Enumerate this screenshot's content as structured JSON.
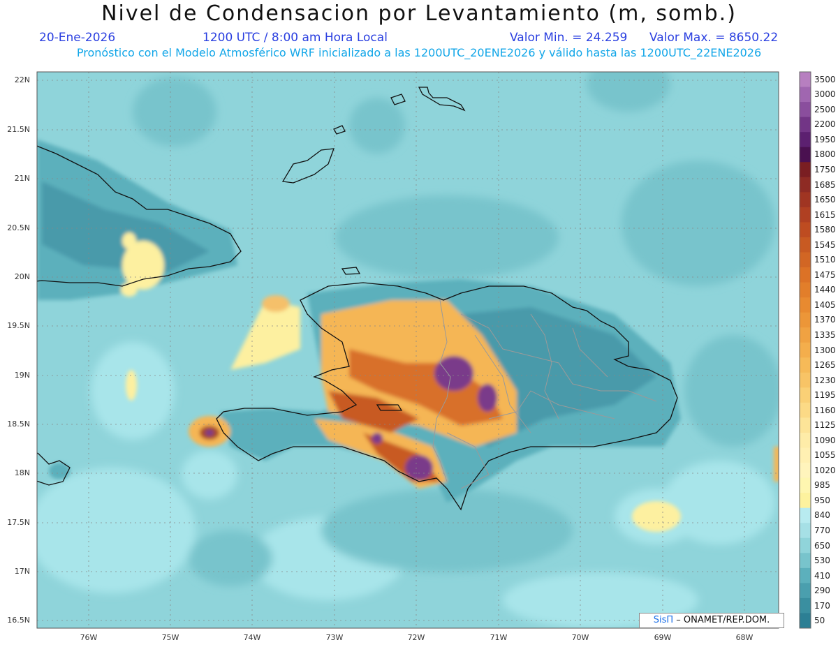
{
  "title": "Nivel de Condensacion por Levantamiento (m, somb.)",
  "date": "20-Ene-2026",
  "time": "1200 UTC / 8:00 am Hora Local",
  "min_label": "Valor Min. = 24.259",
  "max_label": "Valor Max. = 8650.22",
  "forecast_line": "Pronóstico con el Modelo Atmosférico WRF inicializado a las 1200UTC_20ENE2026 y válido hasta las  1200UTC_22ENE2026",
  "credit": {
    "brand": "SisΠ",
    "org": "– ONAMET/REP.DOM."
  },
  "lat_labels": [
    "22N",
    "21.5N",
    "21N",
    "20.5N",
    "20N",
    "19.5N",
    "19N",
    "18.5N",
    "18N",
    "17.5N",
    "17N",
    "16.5N"
  ],
  "lon_labels": [
    "76W",
    "75W",
    "74W",
    "73W",
    "72W",
    "71W",
    "70W",
    "69W",
    "68W"
  ],
  "colorbar": {
    "levels": [
      "3500",
      "3000",
      "2500",
      "2200",
      "1950",
      "1800",
      "1750",
      "1685",
      "1650",
      "1615",
      "1580",
      "1545",
      "1510",
      "1475",
      "1440",
      "1405",
      "1370",
      "1335",
      "1300",
      "1265",
      "1230",
      "1195",
      "1160",
      "1125",
      "1090",
      "1055",
      "1020",
      "985",
      "950",
      "840",
      "770",
      "650",
      "530",
      "410",
      "290",
      "170",
      "50"
    ],
    "colors": [
      "#b77fc0",
      "#a066b0",
      "#8a4e9d",
      "#723586",
      "#5c2070",
      "#4a1050",
      "#7a1e22",
      "#8e2b24",
      "#a03522",
      "#b04022",
      "#be4c21",
      "#c85a22",
      "#d26624",
      "#dc7226",
      "#e27e2a",
      "#e88a30",
      "#ec9638",
      "#f0a242",
      "#f4ae4c",
      "#f6ba58",
      "#f8c466",
      "#fad076",
      "#fcda86",
      "#fde498",
      "#feeca8",
      "#fff0b2",
      "#fff4bc",
      "#fef6b0",
      "#fdf29e",
      "#b8ebf0",
      "#a6e0e6",
      "#90d4da",
      "#78c4cc",
      "#5cb0bc",
      "#4a9fae",
      "#3a8fa0",
      "#2c7f94"
    ]
  },
  "colors": {
    "sea": "#8fd4da",
    "sea_light": "#a8e5ea",
    "low": "#6cb8c4",
    "mid": "#4a9aaa",
    "yellow": "#fdf0a0",
    "orange": "#e8882e",
    "brown": "#a94a22",
    "purple": "#7a3a8a"
  }
}
